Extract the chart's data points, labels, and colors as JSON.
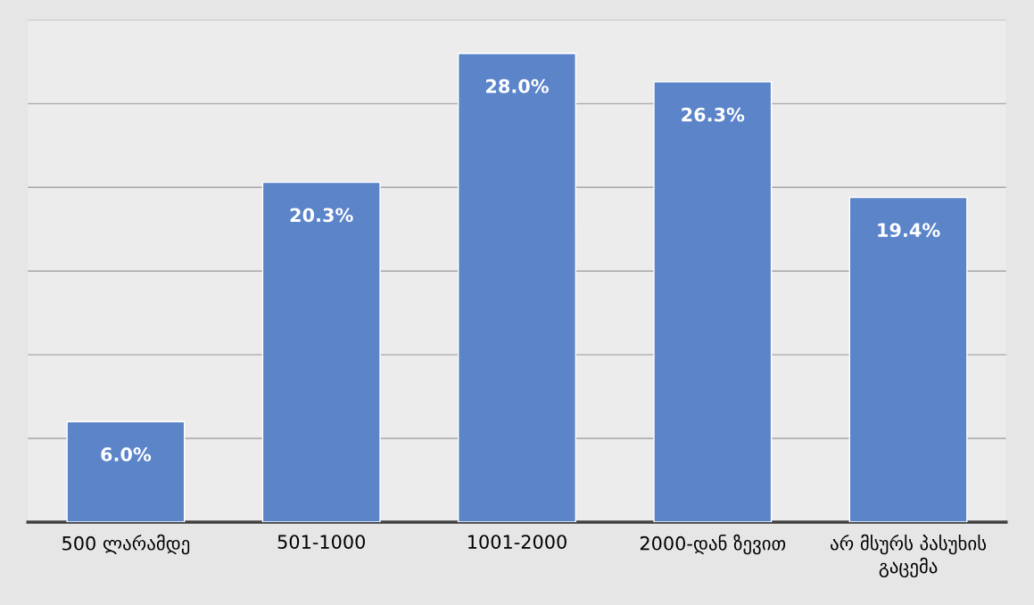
{
  "chart_data": {
    "type": "bar",
    "categories": [
      "500 ლარამდე",
      "501-1000",
      "1001-2000",
      "2000-დან ზევით",
      "არ მსურს პასუხის გაცემა"
    ],
    "values": [
      6.0,
      20.3,
      28.0,
      26.3,
      19.4
    ],
    "value_labels": [
      "6.0%",
      "20.3%",
      "28.0%",
      "26.3%",
      "19.4%"
    ],
    "color": "#5b84c9",
    "ylim": [
      0,
      30
    ],
    "yticks": [
      {
        "value": 0,
        "label": null
      },
      {
        "value": 5,
        "label": null
      },
      {
        "value": 10,
        "label": null
      },
      {
        "value": 15,
        "label": null
      },
      {
        "value": 20,
        "label": null
      },
      {
        "value": 25,
        "label": null
      },
      {
        "value": 30,
        "label": null
      }
    ],
    "grid": "y",
    "tick_labels": "x"
  }
}
